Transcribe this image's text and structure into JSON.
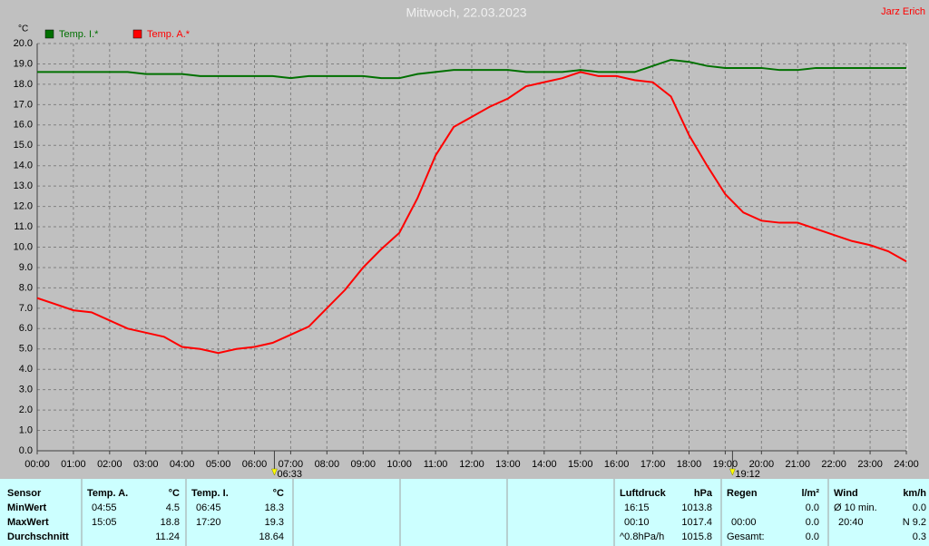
{
  "chart_data": {
    "type": "line",
    "title": "Mittwoch, 22.03.2023",
    "author": "Jarz Erich",
    "y_label": "°C",
    "x": [
      0,
      0.5,
      1,
      1.5,
      2,
      2.5,
      3,
      3.5,
      4,
      4.5,
      5,
      5.5,
      6,
      6.5,
      7,
      7.5,
      8,
      8.5,
      9,
      9.5,
      10,
      10.5,
      11,
      11.5,
      12,
      12.5,
      13,
      13.5,
      14,
      14.5,
      15,
      15.5,
      16,
      16.5,
      17,
      17.5,
      18,
      18.5,
      19,
      19.5,
      20,
      20.5,
      21,
      21.5,
      22,
      22.5,
      23,
      23.5,
      24
    ],
    "series": [
      {
        "name": "Temp. I.*",
        "color": "#007000",
        "values": [
          18.6,
          18.6,
          18.6,
          18.6,
          18.6,
          18.6,
          18.5,
          18.5,
          18.5,
          18.4,
          18.4,
          18.4,
          18.4,
          18.4,
          18.3,
          18.4,
          18.4,
          18.4,
          18.4,
          18.3,
          18.3,
          18.5,
          18.6,
          18.7,
          18.7,
          18.7,
          18.7,
          18.6,
          18.6,
          18.6,
          18.7,
          18.6,
          18.6,
          18.6,
          18.9,
          19.2,
          19.1,
          18.9,
          18.8,
          18.8,
          18.8,
          18.7,
          18.7,
          18.8,
          18.8,
          18.8,
          18.8,
          18.8,
          18.8
        ]
      },
      {
        "name": "Temp. A.*",
        "color": "#ff0000",
        "values": [
          7.5,
          7.2,
          6.9,
          6.8,
          6.4,
          6.0,
          5.8,
          5.6,
          5.1,
          5.0,
          4.8,
          5.0,
          5.1,
          5.3,
          5.7,
          6.1,
          7.0,
          7.9,
          9.0,
          9.9,
          10.7,
          12.4,
          14.5,
          15.9,
          16.4,
          16.9,
          17.3,
          17.9,
          18.1,
          18.3,
          18.6,
          18.4,
          18.4,
          18.2,
          18.1,
          17.4,
          15.5,
          14.0,
          12.6,
          11.7,
          11.3,
          11.2,
          11.2,
          10.9,
          10.6,
          10.3,
          10.1,
          9.8,
          9.3
        ]
      }
    ],
    "xlim": [
      0,
      24
    ],
    "xticks": [
      {
        "value": 0,
        "label": "00:00"
      },
      {
        "value": 1,
        "label": "01:00"
      },
      {
        "value": 2,
        "label": "02:00"
      },
      {
        "value": 3,
        "label": "03:00"
      },
      {
        "value": 4,
        "label": "04:00"
      },
      {
        "value": 5,
        "label": "05:00"
      },
      {
        "value": 6,
        "label": "06:00"
      },
      {
        "value": 7,
        "label": "07:00"
      },
      {
        "value": 8,
        "label": "08:00"
      },
      {
        "value": 9,
        "label": "09:00"
      },
      {
        "value": 10,
        "label": "10:00"
      },
      {
        "value": 11,
        "label": "11:00"
      },
      {
        "value": 12,
        "label": "12:00"
      },
      {
        "value": 13,
        "label": "13:00"
      },
      {
        "value": 14,
        "label": "14:00"
      },
      {
        "value": 15,
        "label": "15:00"
      },
      {
        "value": 16,
        "label": "16:00"
      },
      {
        "value": 17,
        "label": "17:00"
      },
      {
        "value": 18,
        "label": "18:00"
      },
      {
        "value": 19,
        "label": "19:00"
      },
      {
        "value": 20,
        "label": "20:00"
      },
      {
        "value": 21,
        "label": "21:00"
      },
      {
        "value": 22,
        "label": "22:00"
      },
      {
        "value": 23,
        "label": "23:00"
      },
      {
        "value": 24,
        "label": "24:00"
      }
    ],
    "ylim": [
      0,
      20
    ],
    "yticks": [
      {
        "value": 0,
        "label": "0.0"
      },
      {
        "value": 1,
        "label": "1.0"
      },
      {
        "value": 2,
        "label": "2.0"
      },
      {
        "value": 3,
        "label": "3.0"
      },
      {
        "value": 4,
        "label": "4.0"
      },
      {
        "value": 5,
        "label": "5.0"
      },
      {
        "value": 6,
        "label": "6.0"
      },
      {
        "value": 7,
        "label": "7.0"
      },
      {
        "value": 8,
        "label": "8.0"
      },
      {
        "value": 9,
        "label": "9.0"
      },
      {
        "value": 10,
        "label": "10.0"
      },
      {
        "value": 11,
        "label": "11.0"
      },
      {
        "value": 12,
        "label": "12.0"
      },
      {
        "value": 13,
        "label": "13.0"
      },
      {
        "value": 14,
        "label": "14.0"
      },
      {
        "value": 15,
        "label": "15.0"
      },
      {
        "value": 16,
        "label": "16.0"
      },
      {
        "value": 17,
        "label": "17.0"
      },
      {
        "value": 18,
        "label": "18.0"
      },
      {
        "value": 19,
        "label": "19.0"
      },
      {
        "value": 20,
        "label": "20.0"
      }
    ],
    "grid": true,
    "annotations": [
      {
        "x": 6.55,
        "label": "06:33"
      },
      {
        "x": 19.2,
        "label": "19:12"
      }
    ]
  },
  "table": {
    "labels": [
      "Sensor",
      "MinWert",
      "MaxWert",
      "Durchschnitt"
    ],
    "groups": [
      {
        "header": "Temp. A.",
        "unit": "°C",
        "rows": [
          {
            "time": "04:55",
            "value": "4.5"
          },
          {
            "time": "15:05",
            "value": "18.8"
          },
          {
            "value": "11.24"
          }
        ]
      },
      {
        "header": "Temp. I.",
        "unit": "°C",
        "rows": [
          {
            "time": "06:45",
            "value": "18.3"
          },
          {
            "time": "17:20",
            "value": "19.3"
          },
          {
            "value": "18.64"
          }
        ]
      },
      {
        "header": "Luftdruck",
        "unit": "hPa",
        "rows": [
          {
            "time": "16:15",
            "value": "1013.8"
          },
          {
            "time": "00:10",
            "value": "1017.4"
          },
          {
            "time": "^0.8hPa/h",
            "value": "1015.8"
          }
        ]
      },
      {
        "header": "Regen",
        "unit": "l/m²",
        "rows": [
          {
            "value": "0.0"
          },
          {
            "time": "00:00",
            "value": "0.0"
          },
          {
            "time": "Gesamt:",
            "value": "0.0"
          }
        ]
      },
      {
        "header": "Wind",
        "unit": "km/h",
        "rows": [
          {
            "time": "Ø 10 min.",
            "value": "0.0"
          },
          {
            "time": "20:40",
            "value": "N 9.2"
          },
          {
            "value": "0.3"
          }
        ]
      }
    ]
  }
}
